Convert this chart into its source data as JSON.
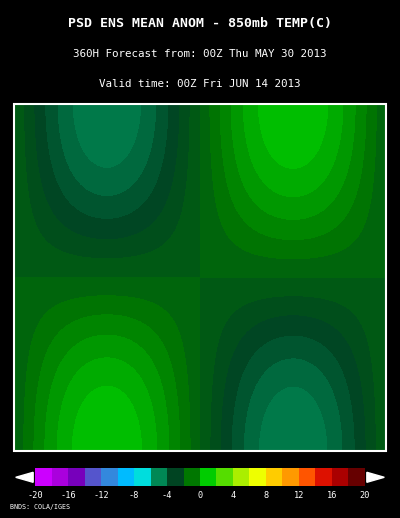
{
  "title_line1": "PSD ENS MEAN ANOM - 850mb TEMP(C)",
  "title_line2": "360H Forecast from: 00Z Thu MAY 30 2013",
  "title_line3": "Valid time: 00Z Fri JUN 14 2013",
  "credit": "BNDS: COLA/IGES",
  "background_color": "#000000",
  "colorbar_colors": [
    "#cc00ff",
    "#aa00dd",
    "#7700bb",
    "#5555cc",
    "#3388dd",
    "#00bbff",
    "#00dddd",
    "#008855",
    "#004422",
    "#007700",
    "#00cc00",
    "#55dd00",
    "#aaee00",
    "#eeff00",
    "#ffcc00",
    "#ff9900",
    "#ff5500",
    "#dd1100",
    "#aa0000",
    "#660000"
  ],
  "colorbar_levels": [
    -20,
    -16,
    -12,
    -8,
    -4,
    0,
    4,
    8,
    12,
    16,
    20
  ],
  "title_color": "#ffffff",
  "title_fontsize": 9.5,
  "subtitle_fontsize": 7.8,
  "map_extent": [
    -170,
    -50,
    10,
    75
  ],
  "ocean_color": "#2a7070",
  "land_color": "#2a7070"
}
